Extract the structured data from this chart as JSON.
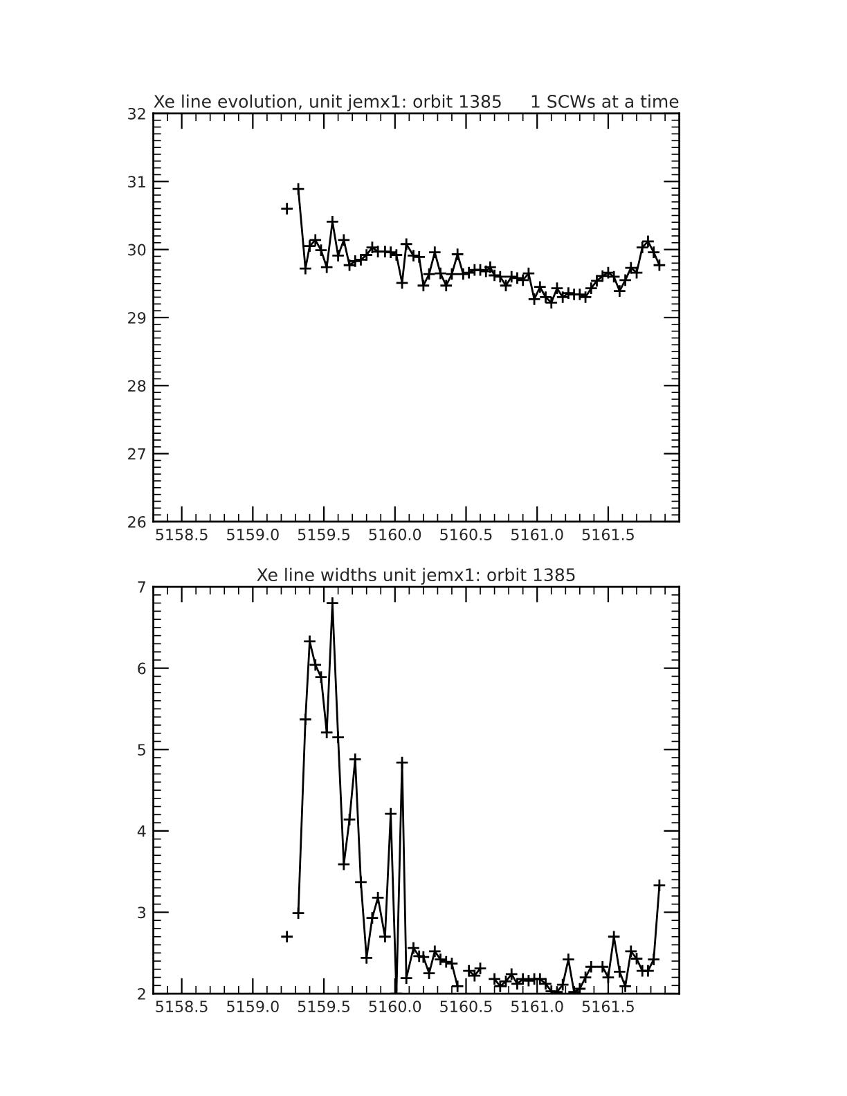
{
  "chart_data": [
    {
      "type": "line",
      "title": "Xe line evolution, unit jemx1: orbit 1385",
      "subtitle": "1 SCWs at a time",
      "marker": "cross",
      "line_style": "solid",
      "grid": false,
      "legend": false,
      "xlim": [
        5158.3,
        5162.0
      ],
      "xticks": [
        5158.5,
        {
          "value": 5159,
          "label": "5159.0"
        },
        5159.5,
        {
          "value": 5160,
          "label": "5160.0"
        },
        5160.5,
        {
          "value": 5161,
          "label": "5161.0"
        },
        5161.5
      ],
      "ylim": [
        26,
        32
      ],
      "yticks": [
        26,
        27,
        28,
        29,
        30,
        31,
        32
      ],
      "x": [
        5159.24,
        5159.28,
        5159.32,
        5159.37,
        5159.4,
        5159.44,
        5159.48,
        5159.52,
        5159.56,
        5159.6,
        5159.64,
        5159.68,
        5159.72,
        5159.76,
        5159.8,
        5159.84,
        5159.88,
        5159.93,
        5159.97,
        5160.01,
        5160.05,
        5160.08,
        5160.13,
        5160.17,
        5160.2,
        5160.24,
        5160.28,
        5160.32,
        5160.36,
        5160.4,
        5160.44,
        5160.48,
        5160.52,
        5160.56,
        5160.6,
        5160.64,
        5160.67,
        5160.7,
        5160.74,
        5160.78,
        5160.82,
        5160.86,
        5160.9,
        5160.94,
        5160.98,
        5161.02,
        5161.06,
        5161.1,
        5161.14,
        5161.18,
        5161.22,
        5161.26,
        5161.3,
        5161.34,
        5161.38,
        5161.42,
        5161.46,
        5161.5,
        5161.54,
        5161.58,
        5161.62,
        5161.66,
        5161.7,
        5161.74,
        5161.78,
        5161.82,
        5161.86
      ],
      "series": [
        {
          "color": "#000000",
          "values": [
            30.6,
            null,
            30.89,
            29.72,
            30.05,
            30.14,
            29.99,
            29.74,
            30.41,
            29.91,
            30.14,
            29.77,
            29.83,
            29.85,
            29.92,
            30.03,
            29.97,
            29.97,
            29.96,
            29.92,
            29.51,
            30.08,
            29.91,
            29.89,
            29.47,
            29.64,
            29.96,
            29.65,
            29.47,
            29.64,
            29.93,
            29.64,
            29.66,
            29.7,
            29.7,
            29.68,
            29.74,
            29.62,
            29.6,
            29.47,
            29.6,
            29.58,
            29.55,
            29.65,
            29.27,
            29.45,
            29.3,
            29.22,
            29.43,
            29.3,
            29.36,
            29.34,
            29.34,
            29.3,
            29.43,
            29.54,
            29.61,
            29.66,
            29.6,
            29.39,
            29.55,
            29.73,
            29.66,
            30.03,
            30.12,
            29.96,
            29.77
          ]
        }
      ]
    },
    {
      "type": "line",
      "title": "Xe line widths unit jemx1: orbit 1385",
      "marker": "cross",
      "line_style": "solid",
      "grid": false,
      "legend": false,
      "xlim": [
        5158.3,
        5162.0
      ],
      "xticks": [
        5158.5,
        {
          "value": 5159,
          "label": "5159.0"
        },
        5159.5,
        {
          "value": 5160,
          "label": "5160.0"
        },
        5160.5,
        {
          "value": 5161,
          "label": "5161.0"
        },
        5161.5
      ],
      "ylim": [
        2,
        7
      ],
      "yticks": [
        2,
        3,
        4,
        5,
        6,
        7
      ],
      "x": [
        5159.24,
        5159.28,
        5159.32,
        5159.37,
        5159.4,
        5159.44,
        5159.48,
        5159.52,
        5159.56,
        5159.6,
        5159.64,
        5159.68,
        5159.72,
        5159.76,
        5159.8,
        5159.84,
        5159.88,
        5159.93,
        5159.97,
        5160.01,
        5160.05,
        5160.08,
        5160.13,
        5160.17,
        5160.2,
        5160.24,
        5160.28,
        5160.32,
        5160.36,
        5160.4,
        5160.44,
        5160.48,
        5160.52,
        5160.56,
        5160.6,
        5160.64,
        5160.7,
        5160.74,
        5160.78,
        5160.82,
        5160.86,
        5160.9,
        5160.94,
        5160.98,
        5161.02,
        5161.06,
        5161.1,
        5161.14,
        5161.18,
        5161.22,
        5161.26,
        5161.3,
        5161.34,
        5161.38,
        5161.42,
        5161.46,
        5161.5,
        5161.54,
        5161.58,
        5161.62,
        5161.66,
        5161.7,
        5161.74,
        5161.78,
        5161.82,
        5161.86
      ],
      "series": [
        {
          "color": "#000000",
          "values": [
            2.7,
            null,
            2.99,
            5.37,
            6.33,
            6.04,
            5.89,
            5.21,
            6.8,
            5.15,
            3.59,
            4.14,
            4.88,
            3.37,
            2.44,
            2.93,
            3.18,
            2.7,
            4.21,
            2.0,
            4.84,
            2.19,
            2.56,
            2.46,
            2.45,
            2.25,
            2.52,
            2.42,
            2.39,
            2.37,
            2.09,
            null,
            2.28,
            2.22,
            2.31,
            null,
            2.18,
            2.09,
            2.15,
            2.24,
            2.12,
            2.18,
            2.16,
            2.18,
            2.18,
            2.12,
            2.03,
            2.02,
            2.11,
            2.42,
            2.02,
            2.06,
            2.2,
            2.33,
            null,
            2.33,
            2.2,
            2.7,
            2.27,
            2.09,
            2.52,
            2.43,
            2.28,
            2.28,
            2.42,
            3.33
          ]
        }
      ]
    }
  ]
}
